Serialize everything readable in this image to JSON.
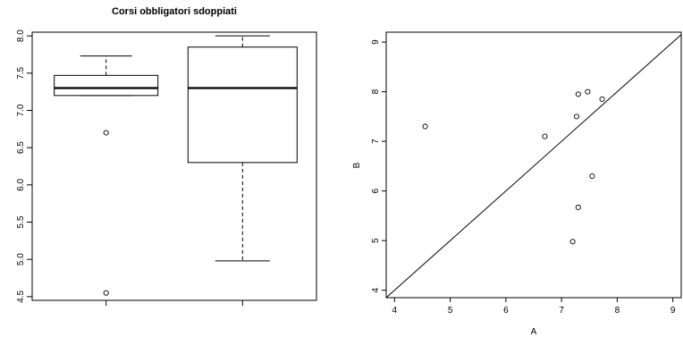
{
  "chart_data": [
    {
      "type": "boxplot",
      "title": "Corsi obbligatori sdoppiati",
      "xlabel": "",
      "ylabel": "",
      "ylim": [
        4.45,
        8.05
      ],
      "y_ticks": [
        "4.5",
        "5.0",
        "5.5",
        "6.0",
        "6.5",
        "7.0",
        "7.5",
        "8.0"
      ],
      "y_tick_values": [
        4.5,
        5.0,
        5.5,
        6.0,
        6.5,
        7.0,
        7.5,
        8.0
      ],
      "series": [
        {
          "whisker_low": 7.2,
          "q1": 7.2,
          "median": 7.3,
          "q3": 7.47,
          "whisker_high": 7.73,
          "outliers": [
            6.7,
            4.55
          ]
        },
        {
          "whisker_low": 4.98,
          "q1": 6.3,
          "median": 7.3,
          "q3": 7.85,
          "whisker_high": 8.0,
          "outliers": []
        }
      ]
    },
    {
      "type": "scatter",
      "title": "",
      "xlabel": "A",
      "ylabel": "B",
      "xlim": [
        3.85,
        9.15
      ],
      "ylim": [
        3.85,
        9.2
      ],
      "x_ticks": [
        "4",
        "5",
        "6",
        "7",
        "8",
        "9"
      ],
      "x_tick_values": [
        4,
        5,
        6,
        7,
        8,
        9
      ],
      "y_ticks": [
        "4",
        "5",
        "6",
        "7",
        "8",
        "9"
      ],
      "y_tick_values": [
        4,
        5,
        6,
        7,
        8,
        9
      ],
      "x": [
        4.55,
        6.7,
        7.27,
        7.3,
        7.47,
        7.73,
        7.55,
        7.3,
        7.2
      ],
      "y": [
        7.3,
        7.1,
        7.5,
        7.95,
        8.0,
        7.85,
        6.3,
        5.67,
        4.98
      ],
      "reference_line": "y = x"
    }
  ]
}
